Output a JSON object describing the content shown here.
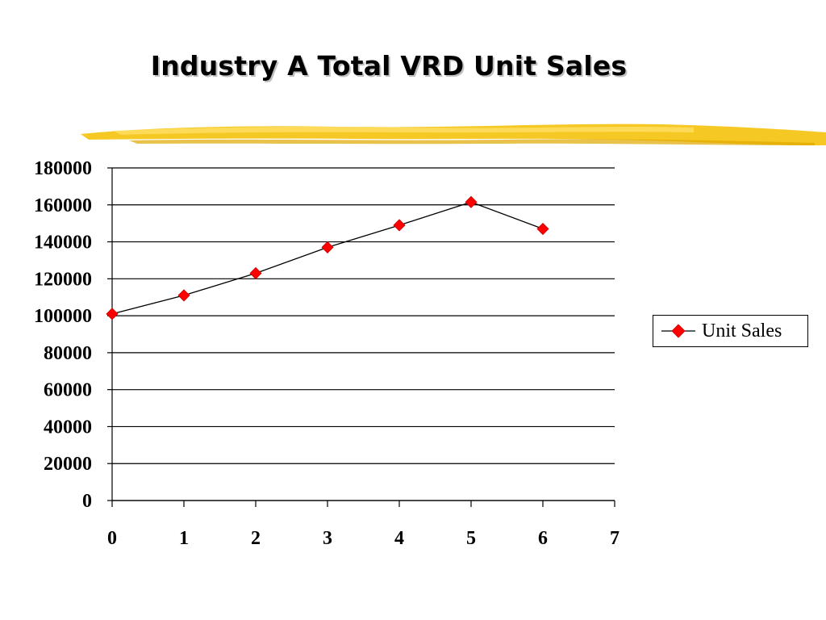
{
  "slide": {
    "title": "Industry A Total VRD Unit Sales"
  },
  "colors": {
    "marker": "#ff0000",
    "line": "#000000",
    "brush": "#f5c518",
    "grid": "#000000"
  },
  "chart_data": {
    "type": "line",
    "title": "Industry A Total VRD Unit Sales",
    "xlabel": "",
    "ylabel": "",
    "x": [
      0,
      1,
      2,
      3,
      4,
      5,
      6
    ],
    "series": [
      {
        "name": "Unit Sales",
        "values": [
          101000,
          111000,
          123000,
          137000,
          149000,
          161500,
          147000
        ]
      }
    ],
    "xlim": [
      0,
      7
    ],
    "ylim": [
      0,
      180000
    ],
    "xticks": [
      0,
      1,
      2,
      3,
      4,
      5,
      6,
      7
    ],
    "yticks": [
      0,
      20000,
      40000,
      60000,
      80000,
      100000,
      120000,
      140000,
      160000,
      180000
    ],
    "grid": "horizontal",
    "legend": "right",
    "marker": "diamond"
  }
}
